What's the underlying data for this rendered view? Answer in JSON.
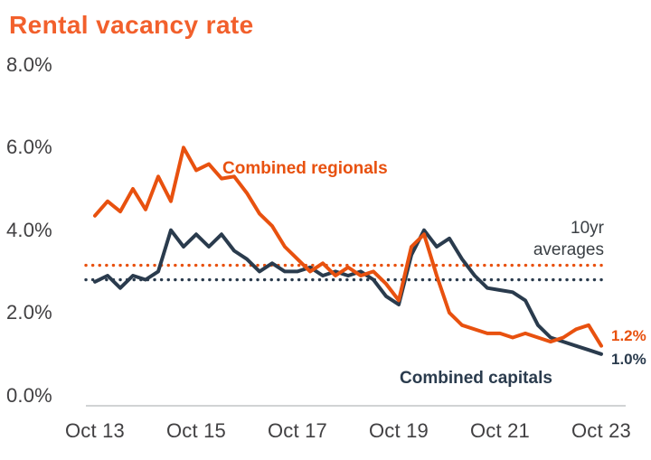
{
  "title": "Rental vacancy rate",
  "colors": {
    "regionals_line": "#e8510f",
    "capitals_line": "#2a3b4d",
    "title_text": "#f2602c",
    "axis_text": "#414042",
    "axis_line": "#d1d3d4"
  },
  "chart_data": {
    "type": "line",
    "title": "Rental vacancy rate",
    "xlabel": "",
    "ylabel": "",
    "ylim": [
      0,
      8
    ],
    "grid": false,
    "legend_position": "inline-labels",
    "frequency": "quarterly",
    "x_tick_labels": [
      "Oct 13",
      "Oct 15",
      "Oct 17",
      "Oct 19",
      "Oct 21",
      "Oct 23"
    ],
    "y_tick_values": [
      0,
      2,
      4,
      6,
      8
    ],
    "y_tick_labels": [
      "0.0%",
      "2.0%",
      "4.0%",
      "6.0%",
      "8.0%"
    ],
    "annotations": {
      "ten_year_averages_label": "10yr averages"
    },
    "series": [
      {
        "name": "Combined regionals",
        "color": "#e8510f",
        "ten_year_average": 3.15,
        "end_value_label": "1.2%",
        "values": [
          4.35,
          4.7,
          4.45,
          5.0,
          4.5,
          5.3,
          4.7,
          6.0,
          5.45,
          5.6,
          5.25,
          5.3,
          4.9,
          4.4,
          4.1,
          3.6,
          3.3,
          3.0,
          3.2,
          2.9,
          3.1,
          2.9,
          3.0,
          2.7,
          2.3,
          3.6,
          3.9,
          2.9,
          2.0,
          1.7,
          1.6,
          1.5,
          1.5,
          1.4,
          1.5,
          1.4,
          1.3,
          1.4,
          1.6,
          1.7,
          1.2
        ]
      },
      {
        "name": "Combined capitals",
        "color": "#2a3b4d",
        "ten_year_average": 2.8,
        "end_value_label": "1.0%",
        "values": [
          2.75,
          2.9,
          2.6,
          2.9,
          2.8,
          3.0,
          4.0,
          3.6,
          3.9,
          3.6,
          3.9,
          3.5,
          3.3,
          3.0,
          3.2,
          3.0,
          3.0,
          3.1,
          2.9,
          3.0,
          2.9,
          3.0,
          2.8,
          2.4,
          2.2,
          3.4,
          4.0,
          3.6,
          3.8,
          3.3,
          2.9,
          2.6,
          2.55,
          2.5,
          2.3,
          1.7,
          1.4,
          1.3,
          1.2,
          1.1,
          1.0
        ]
      }
    ]
  }
}
